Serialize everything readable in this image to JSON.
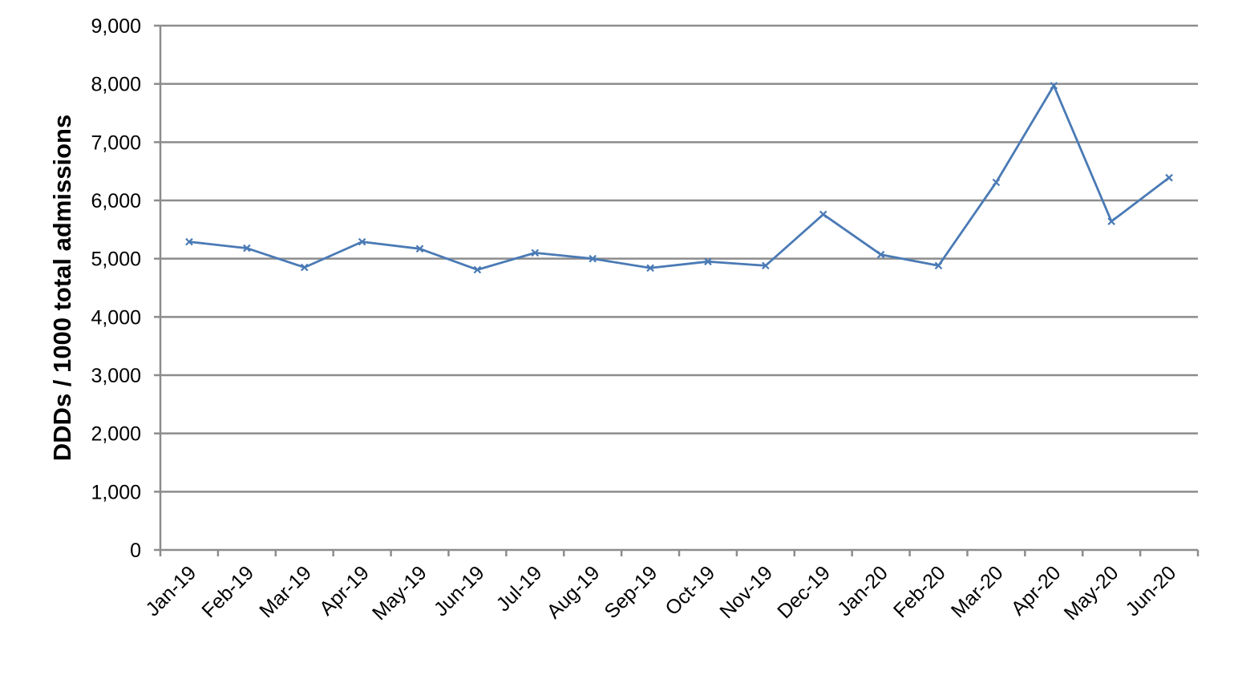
{
  "chart_data": {
    "type": "line",
    "title": "",
    "xlabel": "",
    "ylabel": "DDDs / 1000 total admissions",
    "categories": [
      "Jan-19",
      "Feb-19",
      "Mar-19",
      "Apr-19",
      "May-19",
      "Jun-19",
      "Jul-19",
      "Aug-19",
      "Sep-19",
      "Oct-19",
      "Nov-19",
      "Dec-19",
      "Jan-20",
      "Feb-20",
      "Mar-20",
      "Apr-20",
      "May-20",
      "Jun-20"
    ],
    "series": [
      {
        "values": [
          5290,
          5180,
          4850,
          5290,
          5170,
          4810,
          5100,
          5000,
          4840,
          4950,
          4880,
          5760,
          5070,
          4880,
          6310,
          7970,
          5640,
          6390
        ],
        "color": "#4a7ab5",
        "marker": "x"
      }
    ],
    "ylim": [
      0,
      9000
    ],
    "yticks": [
      0,
      1000,
      2000,
      3000,
      4000,
      5000,
      6000,
      7000,
      8000,
      9000
    ],
    "ytick_labels": [
      "0",
      "1,000",
      "2,000",
      "3,000",
      "4,000",
      "5,000",
      "6,000",
      "7,000",
      "8,000",
      "9,000"
    ],
    "grid": true,
    "legend": "none",
    "colors": {
      "gridline": "#8c8c8c",
      "axis": "#8c8c8c",
      "text": "#000000"
    }
  }
}
